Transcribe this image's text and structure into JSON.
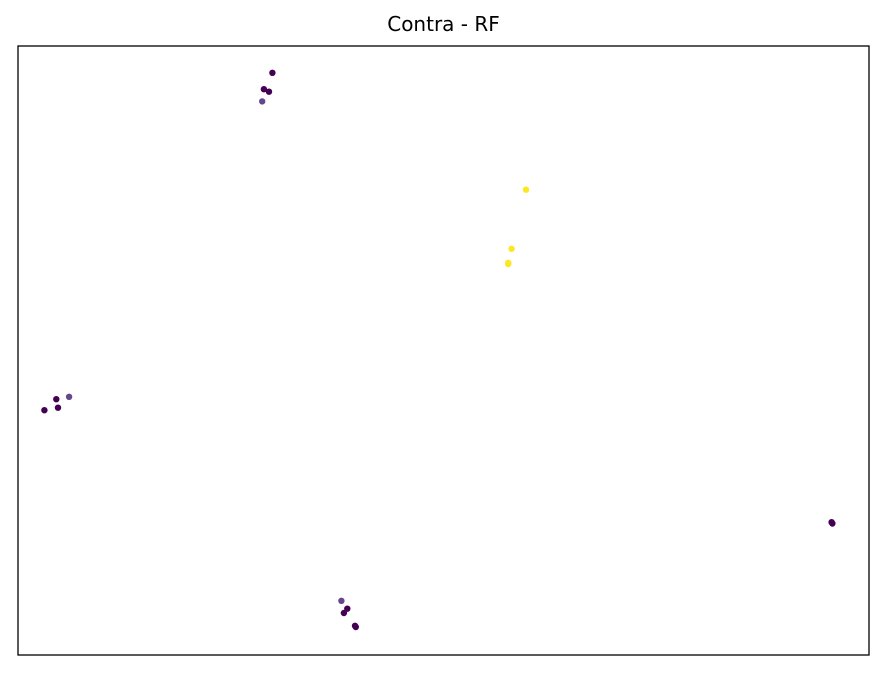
{
  "chart_data": {
    "type": "scatter",
    "title": "Contra - RF",
    "xlabel": "",
    "ylabel": "",
    "xlim": [
      0,
      100
    ],
    "ylim": [
      0,
      100
    ],
    "grid": false,
    "x_ticks_visible": false,
    "y_ticks_visible": false,
    "colors": {
      "dark": "#440154",
      "dark_light": "#482878",
      "yellow": "#fde725"
    },
    "points": [
      {
        "x": 29.9,
        "y": 95.6,
        "color": "#440154"
      },
      {
        "x": 28.9,
        "y": 92.9,
        "color": "#440154"
      },
      {
        "x": 29.5,
        "y": 92.5,
        "color": "#440154"
      },
      {
        "x": 28.7,
        "y": 90.9,
        "color": "#482878"
      },
      {
        "x": 59.7,
        "y": 76.4,
        "color": "#fde725"
      },
      {
        "x": 58.0,
        "y": 66.7,
        "color": "#fde725"
      },
      {
        "x": 57.6,
        "y": 64.4,
        "color": "#fde725"
      },
      {
        "x": 57.6,
        "y": 64.2,
        "color": "#fde725"
      },
      {
        "x": 6.0,
        "y": 42.4,
        "color": "#482878"
      },
      {
        "x": 4.5,
        "y": 42.0,
        "color": "#440154"
      },
      {
        "x": 4.7,
        "y": 40.6,
        "color": "#440154"
      },
      {
        "x": 3.1,
        "y": 40.2,
        "color": "#440154"
      },
      {
        "x": 95.6,
        "y": 21.8,
        "color": "#440154"
      },
      {
        "x": 95.7,
        "y": 21.6,
        "color": "#440154"
      },
      {
        "x": 38.0,
        "y": 8.9,
        "color": "#482878"
      },
      {
        "x": 38.7,
        "y": 7.6,
        "color": "#440154"
      },
      {
        "x": 38.3,
        "y": 6.9,
        "color": "#440154"
      },
      {
        "x": 39.6,
        "y": 4.8,
        "color": "#440154"
      },
      {
        "x": 39.7,
        "y": 4.6,
        "color": "#440154"
      }
    ]
  }
}
